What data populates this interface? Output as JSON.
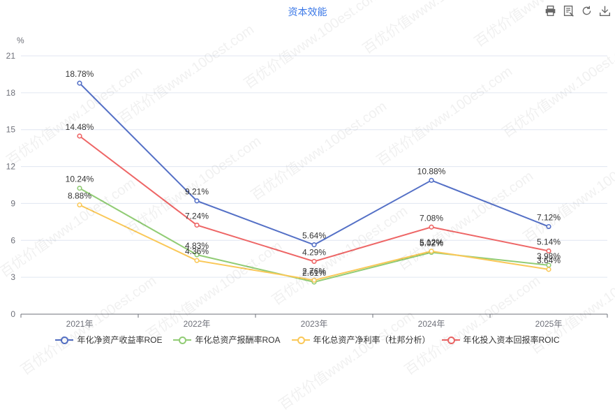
{
  "title": "资本效能",
  "toolbar": [
    {
      "name": "print-icon"
    },
    {
      "name": "data-view-icon"
    },
    {
      "name": "refresh-icon"
    },
    {
      "name": "download-icon"
    }
  ],
  "watermark": "百优价值www.100est.com",
  "chart_data": {
    "type": "line",
    "title": "资本效能",
    "ylabel": "%",
    "ylim": [
      0,
      21
    ],
    "yticks": [
      0,
      3,
      6,
      9,
      12,
      15,
      18,
      21
    ],
    "categories": [
      "2021年",
      "2022年",
      "2023年",
      "2024年",
      "2025年"
    ],
    "grid": true,
    "legend_position": "bottom",
    "series": [
      {
        "name": "年化净资产收益率ROE",
        "color": "#5470c6",
        "values": [
          18.78,
          9.21,
          5.64,
          10.88,
          7.12
        ],
        "labels": [
          "18.78%",
          "9.21%",
          "5.64%",
          "10.88%",
          "7.12%"
        ]
      },
      {
        "name": "年化总资产报酬率ROA",
        "color": "#91cc75",
        "values": [
          10.24,
          4.83,
          2.61,
          5.02,
          3.98
        ],
        "labels": [
          "10.24%",
          "4.83%",
          "2.61%",
          "5.02%",
          "3.98%"
        ]
      },
      {
        "name": "年化总资产净利率（杜邦分析）",
        "color": "#fac858",
        "values": [
          8.88,
          4.36,
          2.76,
          5.12,
          3.64
        ],
        "labels": [
          "8.88%",
          "4.36%",
          "2.76%",
          "5.12%",
          "3.64%"
        ]
      },
      {
        "name": "年化投入资本回报率ROIC",
        "color": "#ee6666",
        "values": [
          14.48,
          7.24,
          4.29,
          7.08,
          5.14
        ],
        "labels": [
          "14.48%",
          "7.24%",
          "4.29%",
          "7.08%",
          "5.14%"
        ]
      }
    ]
  }
}
